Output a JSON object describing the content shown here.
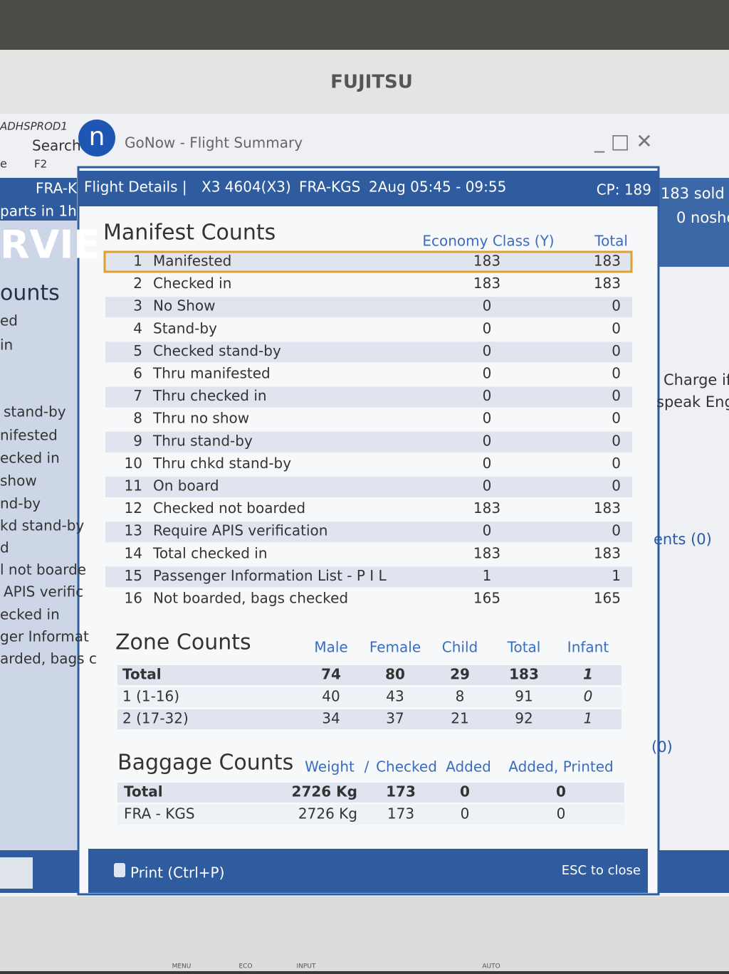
{
  "monitor": {
    "brand": "FUJITSU",
    "buttons": [
      "MENU",
      "ECO",
      "INPUT",
      "AUTO"
    ]
  },
  "background": {
    "top_left": [
      "ADHSPROD1",
      "Search",
      "e",
      "F2"
    ],
    "left_panel": [
      "FRA-K",
      "parts in 1h",
      "RVIE",
      "ounts",
      "ed",
      "in",
      "stand-by",
      "nifested",
      "ecked in",
      "show",
      "nd-by",
      "kd stand-by",
      "d",
      "l not boarde",
      "APIS verific",
      "ecked in",
      "ger Informat",
      "arded, bags c"
    ],
    "right_panel": [
      "183 sold",
      "0 nosho",
      "Charge if",
      "speak Engli",
      "ents (0)",
      "(0)"
    ]
  },
  "window": {
    "app_title": "GoNow - Flight Summary",
    "header": {
      "label": "Flight Details |",
      "flight": "X3 4604(X3)",
      "route": "FRA-KGS",
      "date_time": "2Aug 05:45 - 09:55",
      "cp": "CP: 189"
    },
    "manifest": {
      "title": "Manifest Counts",
      "columns": [
        "Economy Class (Y)",
        "Total"
      ],
      "rows": [
        [
          1,
          "Manifested",
          183,
          183
        ],
        [
          2,
          "Checked in",
          183,
          183
        ],
        [
          3,
          "No Show",
          0,
          0
        ],
        [
          4,
          "Stand-by",
          0,
          0
        ],
        [
          5,
          "Checked stand-by",
          0,
          0
        ],
        [
          6,
          "Thru manifested",
          0,
          0
        ],
        [
          7,
          "Thru checked in",
          0,
          0
        ],
        [
          8,
          "Thru no show",
          0,
          0
        ],
        [
          9,
          "Thru stand-by",
          0,
          0
        ],
        [
          10,
          "Thru chkd stand-by",
          0,
          0
        ],
        [
          11,
          "On board",
          0,
          0
        ],
        [
          12,
          "Checked not boarded",
          183,
          183
        ],
        [
          13,
          "Require APIS verification",
          0,
          0
        ],
        [
          14,
          "Total checked in",
          183,
          183
        ],
        [
          15,
          "Passenger Information List - P I L",
          1,
          1
        ],
        [
          16,
          "Not boarded, bags checked",
          165,
          165
        ]
      ]
    },
    "zone": {
      "title": "Zone Counts",
      "columns": [
        "Male",
        "Female",
        "Child",
        "Total",
        "Infant"
      ],
      "rows": [
        [
          "Total",
          74,
          80,
          29,
          183,
          1
        ],
        [
          "1 (1-16)",
          40,
          43,
          8,
          91,
          0
        ],
        [
          "2 (17-32)",
          34,
          37,
          21,
          92,
          1
        ]
      ]
    },
    "baggage": {
      "title": "Baggage Counts",
      "columns": [
        "Weight",
        "/",
        "Checked",
        "Added",
        "Added, Printed"
      ],
      "rows": [
        [
          "Total",
          "2726 Kg",
          173,
          0,
          0
        ],
        [
          "FRA - KGS",
          "2726 Kg",
          173,
          0,
          0
        ]
      ]
    },
    "footer": {
      "print": "Print (Ctrl+P)",
      "close": "ESC to close"
    }
  }
}
